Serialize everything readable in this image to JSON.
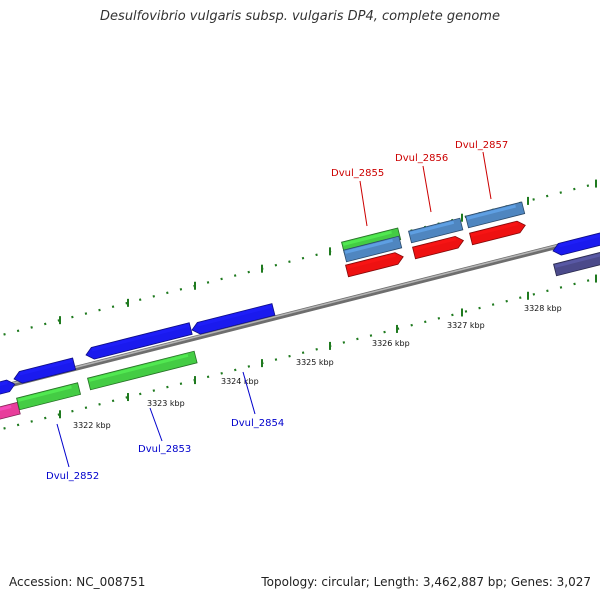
{
  "header": {
    "title": "Desulfovibrio vulgaris subsp. vulgaris DP4, complete genome"
  },
  "footer": {
    "accession": "Accession: NC_008751",
    "stats": "Topology: circular; Length: 3,462,887 bp; Genes: 3,027"
  },
  "colors": {
    "backbone": "#8a8a8a",
    "tick": "#1f7a1f",
    "forward_cds": "#1a1aee",
    "reverse_cds": "#1a1aee",
    "gene_green": "#44cc44",
    "trna_red": "#ee1111",
    "steelblue": "#4f86c0",
    "magenta": "#e83e9b",
    "slate": "#4b4a8a",
    "label_red": "#cc0000",
    "label_blue": "#0000cc"
  },
  "scale": {
    "unit": "kbp",
    "tick_labels": [
      "3322 kbp",
      "3323 kbp",
      "3324 kbp",
      "3325 kbp",
      "3326 kbp",
      "3327 kbp",
      "3328 kbp"
    ]
  },
  "gene_labels": [
    {
      "id": "Dvul_2852",
      "color": "label_blue"
    },
    {
      "id": "Dvul_2853",
      "color": "label_blue"
    },
    {
      "id": "Dvul_2854",
      "color": "label_blue"
    },
    {
      "id": "Dvul_2855",
      "color": "label_red"
    },
    {
      "id": "Dvul_2856",
      "color": "label_red"
    },
    {
      "id": "Dvul_2857",
      "color": "label_red"
    }
  ]
}
